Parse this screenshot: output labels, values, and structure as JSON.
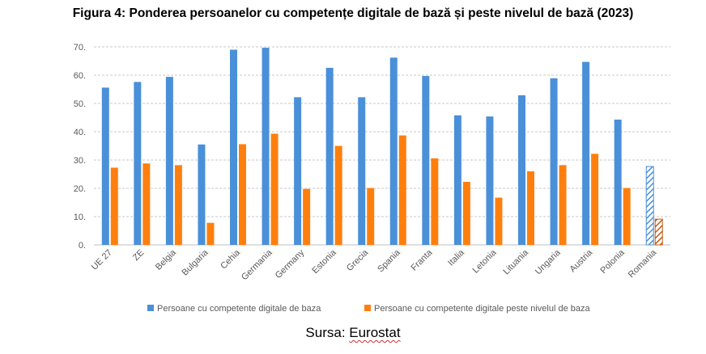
{
  "title": "Figura 4: Ponderea persoanelor cu competențe digitale de bază și peste nivelul de bază (2023)",
  "source": {
    "prefix": "Sursa: ",
    "name": "Eurostat"
  },
  "colors": {
    "basic": "#4a90d9",
    "above": "#ff7f0e",
    "grid": "#c8c8c8",
    "axis": "#bfbfbf",
    "text": "#595959"
  },
  "chart_data": {
    "type": "bar",
    "title": "Figura 4: Ponderea persoanelor cu competențe digitale de bază și peste nivelul de bază (2023)",
    "categories": [
      "UE 27",
      "ZE",
      "Belgia",
      "Bulgaria",
      "Cehia",
      "Germania",
      "Germany",
      "Estonia",
      "Grecia",
      "Spania",
      "Franta",
      "Italia",
      "Letonia",
      "Lituania",
      "Ungaria",
      "Austria",
      "Polonia",
      "Romania"
    ],
    "series": [
      {
        "name": "Persoane cu competente digitale de baza",
        "color": "#4a90d9",
        "values": [
          55.6,
          57.6,
          59.4,
          35.5,
          69.0,
          69.7,
          52.2,
          62.6,
          52.2,
          66.2,
          59.7,
          45.8,
          45.4,
          52.9,
          58.9,
          64.7,
          44.3,
          27.7
        ]
      },
      {
        "name": "Persoane cu competente digitale peste nivelul de baza",
        "color": "#ff7f0e",
        "values": [
          27.3,
          28.8,
          28.2,
          7.8,
          35.6,
          39.3,
          19.8,
          35.0,
          20.1,
          38.7,
          30.6,
          22.3,
          16.7,
          26.0,
          28.2,
          32.2,
          20.1,
          9.1
        ]
      }
    ],
    "hatched_categories": [
      "Romania"
    ],
    "ylim": [
      0,
      70
    ],
    "yticks": [
      "0.",
      "10.",
      "20.",
      "30.",
      "40.",
      "50.",
      "60.",
      "70."
    ],
    "grid": true,
    "legend_position": "bottom",
    "xlabel": "",
    "ylabel": ""
  }
}
